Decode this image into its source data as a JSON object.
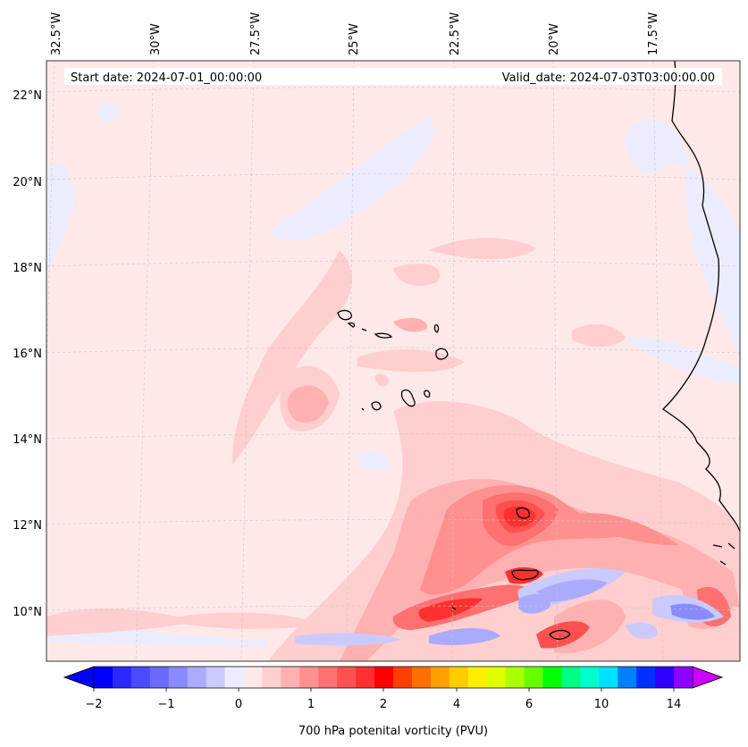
{
  "map": {
    "start_label": "Start date: 2024-07-01_00:00:00",
    "valid_label": "Valid_date: 2024-07-03T03:00:00.00",
    "lon_labels": [
      "32.5°W",
      "30°W",
      "27.5°W",
      "25°W",
      "22.5°W",
      "20°W",
      "17.5°W"
    ],
    "lat_labels": [
      "22°N",
      "20°N",
      "18°N",
      "16°N",
      "14°N",
      "12°N",
      "10°N"
    ]
  },
  "colorbar": {
    "title": "700 hPa potenital vorticity (PVU)",
    "tick_labels": [
      "−2",
      "−1",
      "0",
      "1",
      "2",
      "4",
      "6",
      "10",
      "14"
    ],
    "colors": [
      "#0000ff",
      "#2a2aff",
      "#4a4aff",
      "#6a6aff",
      "#8a8aff",
      "#aaaaff",
      "#cacaff",
      "#ececff",
      "#ffe8e8",
      "#ffcece",
      "#ffb0b0",
      "#ff9090",
      "#ff7070",
      "#ff5050",
      "#ff3030",
      "#ff0000",
      "#ff4000",
      "#ff7000",
      "#ffa000",
      "#ffcc00",
      "#ffee00",
      "#ddff00",
      "#aaff00",
      "#66ff00",
      "#00ff00",
      "#00ff80",
      "#00ffcc",
      "#00e0ff",
      "#0080ff",
      "#0030ff",
      "#3000ff",
      "#9000ff"
    ],
    "under_color": "#0000ff",
    "over_color": "#cc00ff"
  },
  "colors": {
    "background_field": "#ffe8e8",
    "coast": "#000000"
  }
}
